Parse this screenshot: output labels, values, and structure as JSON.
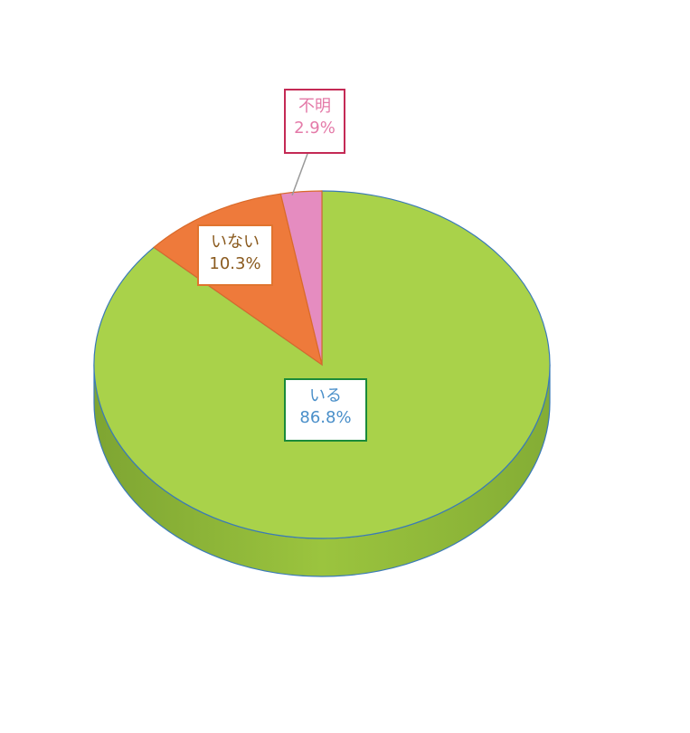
{
  "chart_data": {
    "type": "pie",
    "style": "3d-tilted",
    "title": "",
    "legend": "none",
    "slices": [
      {
        "label": "いる",
        "value": 86.8,
        "value_text": "86.8%",
        "color": "#a9d24a",
        "label_color": "#4a8fc9",
        "border_color": "#1a8a3a"
      },
      {
        "label": "いない",
        "value": 10.3,
        "value_text": "10.3%",
        "color": "#ee7a3b",
        "label_color": "#8a5a1e",
        "border_color": "#e0742e"
      },
      {
        "label": "不明",
        "value": 2.9,
        "value_text": "2.9%",
        "color": "#e58cc0",
        "label_color": "#e47aa8",
        "border_color": "#c42a55"
      }
    ]
  }
}
